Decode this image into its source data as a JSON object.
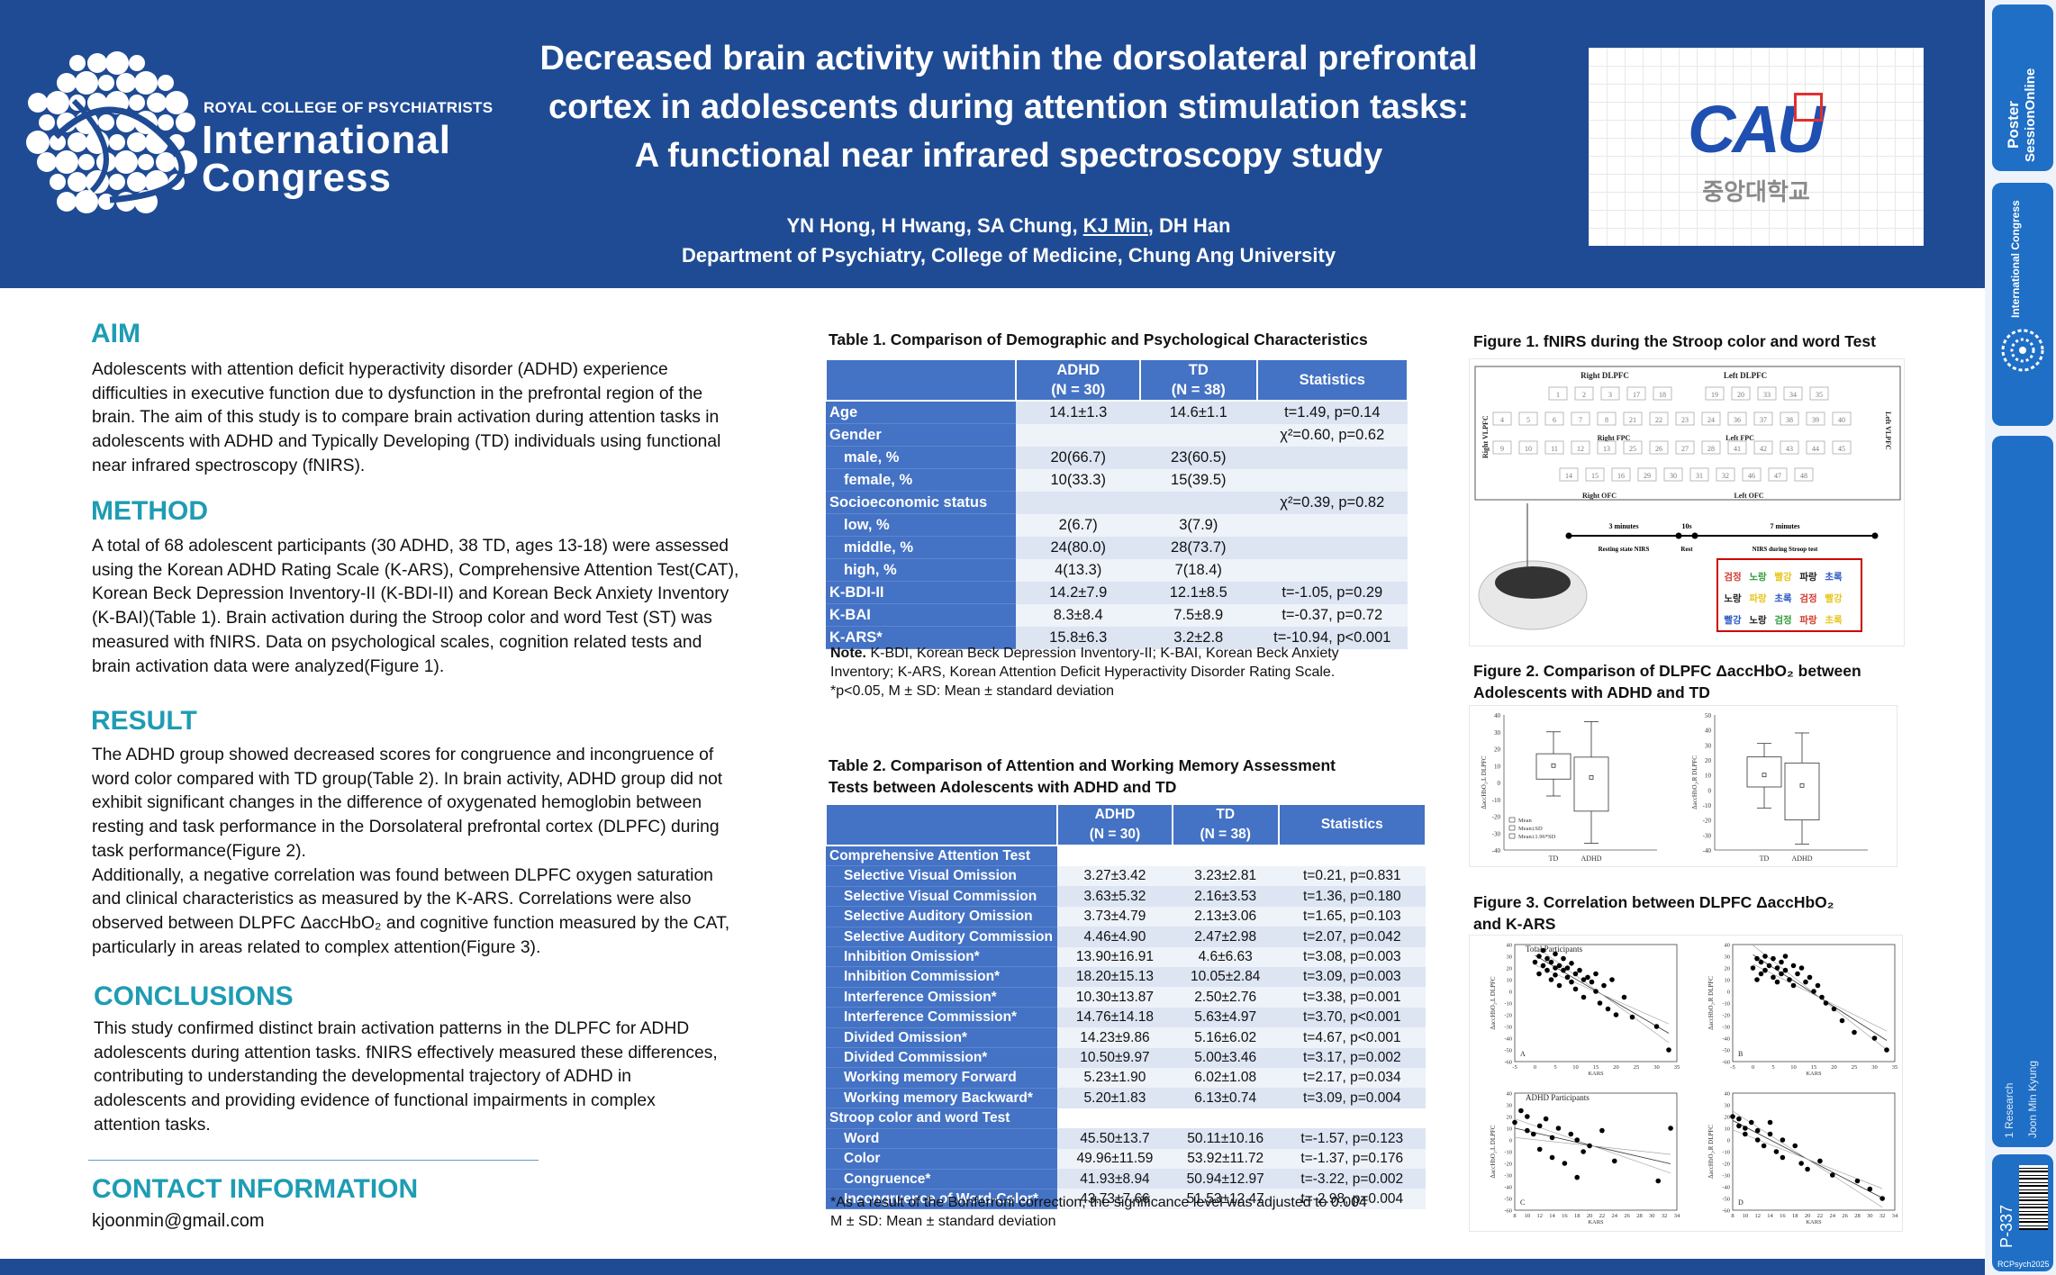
{
  "header": {
    "org_small": "ROYAL COLLEGE OF PSYCHIATRISTS",
    "org_line1": "International",
    "org_line2": "Congress",
    "title_lines": [
      "Decreased brain activity within the dorsolateral prefrontal",
      "cortex in adolescents during attention stimulation tasks:",
      "A functional near infrared spectroscopy study"
    ],
    "authors_before": "YN Hong, H Hwang, SA Chung, ",
    "authors_presenter": "KJ Min",
    "authors_after": ", DH Han",
    "affiliation": "Department of Psychiatry, College of Medicine, Chung Ang University",
    "univ_logo_text": "CAU",
    "univ_logo_korean": "중앙대학교"
  },
  "sidebar": {
    "brand_line1": "Poster",
    "brand_line2": "SessionOnline",
    "brand_sub": "International Congress",
    "category": "1 Research",
    "presenter": "Joon Min Kyung",
    "poster_id": "P-337",
    "event_code": "RCPsych2025"
  },
  "aim": {
    "heading": "AIM",
    "lines": [
      "Adolescents with attention deficit hyperactivity disorder (ADHD) experience",
      "difficulties in executive function due to dysfunction in the prefrontal region of the",
      "brain. The aim of this study is to compare brain activation during attention tasks in",
      "adolescents with ADHD and Typically Developing (TD) individuals using functional",
      "near infrared spectroscopy (fNIRS)."
    ]
  },
  "method": {
    "heading": "METHOD",
    "lines": [
      "A total of 68 adolescent participants (30 ADHD, 38 TD, ages 13-18) were assessed",
      "using the Korean ADHD Rating Scale (K-ARS), Comprehensive Attention Test(CAT),",
      "Korean Beck Depression Inventory-II (K-BDI-II) and Korean Beck Anxiety Inventory",
      "(K-BAI)(Table 1). Brain activation during the Stroop color and word Test (ST) was",
      "measured with fNIRS. Data on psychological scales, cognition related tests and",
      "brain activation data were analyzed(Figure 1)."
    ]
  },
  "result": {
    "heading": "RESULT",
    "lines": [
      "The ADHD group showed decreased scores for congruence and incongruence of",
      "word color compared with TD group(Table 2). In brain activity, ADHD group did not",
      "exhibit significant changes in the difference of oxygenated hemoglobin between",
      "resting and task performance in the Dorsolateral prefrontal cortex (DLPFC) during",
      "task performance(Figure 2).",
      "Additionally, a negative correlation was found between DLPFC oxygen saturation",
      "and clinical characteristics as measured by the K-ARS. Correlations were also",
      "observed between DLPFC ΔaccHbO₂ and cognitive function measured by the CAT,",
      "particularly in areas related to complex attention(Figure 3)."
    ]
  },
  "conclusions": {
    "heading": "CONCLUSIONS",
    "lines": [
      "This study confirmed distinct brain activation patterns in the DLPFC for ADHD",
      "adolescents during attention tasks. fNIRS effectively measured these differences,",
      "contributing to understanding the developmental trajectory of ADHD in",
      "adolescents and providing evidence of functional impairments in complex",
      "attention tasks."
    ]
  },
  "contact": {
    "heading": "CONTACT INFORMATION",
    "email": "kjoonmin@gmail.com"
  },
  "table1": {
    "caption": "Table 1. Comparison of Demographic and Psychological Characteristics",
    "headers": [
      "",
      "ADHD\n(N = 30)",
      "TD\n(N = 38)",
      "Statistics"
    ],
    "rows": [
      [
        "Age",
        "14.1±1.3",
        "14.6±1.1",
        "t=1.49, p=0.14"
      ],
      [
        "Gender",
        "",
        "",
        "χ²=0.60, p=0.62"
      ],
      [
        "male, %",
        "20(66.7)",
        "23(60.5)",
        ""
      ],
      [
        "female, %",
        "10(33.3)",
        "15(39.5)",
        ""
      ],
      [
        "Socioeconomic status",
        "",
        "",
        "χ²=0.39, p=0.82"
      ],
      [
        "low, %",
        "2(6.7)",
        "3(7.9)",
        ""
      ],
      [
        "middle, %",
        "24(80.0)",
        "28(73.7)",
        ""
      ],
      [
        "high, %",
        "4(13.3)",
        "7(18.4)",
        ""
      ],
      [
        "K-BDI-II",
        "14.2±7.9",
        "12.1±8.5",
        "t=-1.05, p=0.29"
      ],
      [
        "K-BAI",
        "8.3±8.4",
        "7.5±8.9",
        "t=-0.37, p=0.72"
      ],
      [
        "K-ARS*",
        "15.8±6.3",
        "3.2±2.8",
        "t=-10.94, p<0.001"
      ]
    ],
    "note_bold": "Note.",
    "note_lines": [
      " K-BDI, Korean Beck Depression Inventory-II; K-BAI, Korean Beck Anxiety",
      "Inventory; K-ARS, Korean Attention Deficit Hyperactivity Disorder Rating Scale.",
      "*p<0.05, M ± SD: Mean ± standard deviation"
    ]
  },
  "table2": {
    "caption_lines": [
      "Table 2. Comparison of Attention and Working Memory Assessment",
      "Tests between Adolescents with ADHD and TD"
    ],
    "headers": [
      "",
      "ADHD\n(N = 30)",
      "TD\n(N = 38)",
      "Statistics"
    ],
    "rows": [
      [
        "Comprehensive Attention Test",
        "",
        "",
        ""
      ],
      [
        "Selective Visual Omission",
        "3.27±3.42",
        "3.23±2.81",
        "t=0.21, p=0.831"
      ],
      [
        "Selective Visual Commission",
        "3.63±5.32",
        "2.16±3.53",
        "t=1.36, p=0.180"
      ],
      [
        "Selective Auditory Omission",
        "3.73±4.79",
        "2.13±3.06",
        "t=1.65, p=0.103"
      ],
      [
        "Selective Auditory Commission",
        "4.46±4.90",
        "2.47±2.98",
        "t=2.07, p=0.042"
      ],
      [
        "Inhibition Omission*",
        "13.90±16.91",
        "4.6±6.63",
        "t=3.08, p=0.003"
      ],
      [
        "Inhibition Commission*",
        "18.20±15.13",
        "10.05±2.84",
        "t=3.09, p=0.003"
      ],
      [
        "Interference Omission*",
        "10.30±13.87",
        "2.50±2.76",
        "t=3.38, p=0.001"
      ],
      [
        "Interference Commission*",
        "14.76±14.18",
        "5.63±4.97",
        "t=3.70, p<0.001"
      ],
      [
        "Divided Omission*",
        "14.23±9.86",
        "5.16±6.02",
        "t=4.67, p<0.001"
      ],
      [
        "Divided Commission*",
        "10.50±9.97",
        "5.00±3.46",
        "t=3.17, p=0.002"
      ],
      [
        "Working memory Forward",
        "5.23±1.90",
        "6.02±1.08",
        "t=2.17, p=0.034"
      ],
      [
        "Working memory Backward*",
        "5.20±1.83",
        "6.13±0.74",
        "t=3.09, p=0.004"
      ],
      [
        "Stroop color and word Test",
        "",
        "",
        ""
      ],
      [
        "Word",
        "45.50±13.7",
        "50.11±10.16",
        "t=-1.57, p=0.123"
      ],
      [
        "Color",
        "49.96±11.59",
        "53.92±11.72",
        "t=-1.37, p=0.176"
      ],
      [
        "Congruence*",
        "41.93±8.94",
        "50.94±12.97",
        "t=-3.22, p=0.002"
      ],
      [
        "Incongruence of Word-Color*",
        "43.73±7.66",
        "51.53±12.47",
        "t=-2.98, p=0.004"
      ]
    ],
    "note_lines": [
      "*As a result of the Bonferroni correction, the significance level was adjusted to 0.004",
      "M ± SD: Mean ± standard deviation"
    ]
  },
  "figure1": {
    "caption": "Figure 1. fNIRS  during the Stroop color and word Test",
    "region_labels": [
      "Right DLPFC",
      "Left DLPFC",
      "Right VLPFC",
      "Left VLPFC",
      "Right FPC",
      "Left FPC",
      "Right OFC",
      "Left OFC"
    ],
    "channels": [
      "1",
      "2",
      "3",
      "17",
      "18",
      "19",
      "20",
      "33",
      "34",
      "35",
      "4",
      "5",
      "6",
      "7",
      "8",
      "21",
      "22",
      "23",
      "24",
      "36",
      "37",
      "38",
      "39",
      "40",
      "9",
      "10",
      "11",
      "12",
      "13",
      "25",
      "26",
      "27",
      "28",
      "41",
      "42",
      "43",
      "44",
      "45",
      "14",
      "15",
      "16",
      "29",
      "30",
      "31",
      "32",
      "46",
      "47",
      "48"
    ],
    "timeline": [
      "3 minutes",
      "10s",
      "7 minutes",
      "Resting state NIRS",
      "Rest",
      "NIRS during Stroop test"
    ],
    "stroop_rows": [
      [
        {
          "t": "검정",
          "c": "#d23b2e"
        },
        {
          "t": "노랑",
          "c": "#2e9c3a"
        },
        {
          "t": "빨강",
          "c": "#e8c51a"
        },
        {
          "t": "파랑",
          "c": "#222222"
        },
        {
          "t": "초록",
          "c": "#2a56c4"
        }
      ],
      [
        {
          "t": "노랑",
          "c": "#222222"
        },
        {
          "t": "파랑",
          "c": "#e8c51a"
        },
        {
          "t": "초록",
          "c": "#2a56c4"
        },
        {
          "t": "검정",
          "c": "#d23b2e"
        },
        {
          "t": "빨강",
          "c": "#e8c51a"
        }
      ],
      [
        {
          "t": "빨강",
          "c": "#2a56c4"
        },
        {
          "t": "노랑",
          "c": "#222222"
        },
        {
          "t": "검정",
          "c": "#2e9c3a"
        },
        {
          "t": "파랑",
          "c": "#d23b2e"
        },
        {
          "t": "초록",
          "c": "#e8c51a"
        }
      ]
    ]
  },
  "figure2": {
    "caption_lines": [
      "Figure 2. Comparison of DLPFC ΔaccHbO₂  between",
      "Adolescents with ADHD and TD"
    ],
    "legend": [
      "Mean",
      "Mean±SD",
      "Mean±1.96*SD"
    ]
  },
  "figure3": {
    "caption_lines": [
      "Figure 3. Correlation between DLPFC ΔaccHbO₂",
      "and K-ARS"
    ],
    "panel_titles": [
      "Total Participants",
      "ADHD Participants"
    ],
    "xlabel": "KARS"
  },
  "chart_data": [
    {
      "type": "box",
      "panel": "Figure 2 left",
      "ylabel": "ΔaccHbO₂,L DLPFC",
      "categories": [
        "TD",
        "ADHD"
      ],
      "ylim": [
        -40,
        40
      ],
      "yticks": [
        40,
        30,
        20,
        10,
        0,
        -10,
        -20,
        -30,
        -40
      ],
      "boxes": [
        {
          "name": "TD",
          "mean": 10,
          "q1": 2,
          "q3": 17,
          "whisker_low": -8,
          "whisker_high": 30
        },
        {
          "name": "ADHD",
          "mean": 3,
          "q1": -17,
          "q3": 15,
          "whisker_low": -36,
          "whisker_high": 36
        }
      ]
    },
    {
      "type": "box",
      "panel": "Figure 2 right",
      "ylabel": "ΔaccHbO₂,R DLPFC",
      "categories": [
        "TD",
        "ADHD"
      ],
      "ylim": [
        -40,
        50
      ],
      "yticks": [
        50,
        40,
        30,
        20,
        10,
        0,
        -10,
        -20,
        -30,
        -40
      ],
      "boxes": [
        {
          "name": "TD",
          "mean": 10,
          "q1": 2,
          "q3": 22,
          "whisker_low": -12,
          "whisker_high": 31
        },
        {
          "name": "ADHD",
          "mean": 3,
          "q1": -20,
          "q3": 18,
          "whisker_low": -36,
          "whisker_high": 38
        }
      ]
    },
    {
      "type": "scatter",
      "panel": "A",
      "title": "Total Participants",
      "xlabel": "KARS",
      "ylabel": "ΔaccHbO₂,L DLPFC",
      "xlim": [
        -5,
        35
      ],
      "ylim": [
        -60,
        40
      ],
      "xticks": [
        -5,
        0,
        5,
        10,
        15,
        20,
        25,
        30,
        35
      ],
      "yticks": [
        40,
        30,
        20,
        10,
        0,
        -10,
        -20,
        -30,
        -40,
        -50,
        -60
      ],
      "x": [
        0,
        1,
        1,
        2,
        2,
        3,
        3,
        4,
        4,
        5,
        5,
        5,
        6,
        6,
        7,
        7,
        8,
        8,
        9,
        9,
        10,
        10,
        11,
        12,
        12,
        13,
        14,
        15,
        15,
        16,
        17,
        18,
        19,
        20,
        22,
        24,
        30,
        33
      ],
      "y": [
        25,
        30,
        15,
        22,
        35,
        18,
        28,
        10,
        25,
        20,
        32,
        14,
        22,
        5,
        18,
        28,
        12,
        20,
        8,
        24,
        15,
        2,
        18,
        10,
        -5,
        12,
        8,
        0,
        15,
        -10,
        5,
        -15,
        10,
        -20,
        -5,
        -22,
        -30,
        -50
      ]
    },
    {
      "type": "scatter",
      "panel": "B",
      "title": "",
      "xlabel": "KARS",
      "ylabel": "ΔaccHbO₂,R DLPFC",
      "xlim": [
        -5,
        35
      ],
      "ylim": [
        -60,
        40
      ],
      "xticks": [
        -5,
        0,
        5,
        10,
        15,
        20,
        25,
        30,
        35
      ],
      "yticks": [
        40,
        30,
        20,
        10,
        0,
        -10,
        -20,
        -30,
        -40,
        -50,
        -60
      ],
      "x": [
        0,
        1,
        1,
        2,
        2,
        3,
        3,
        4,
        5,
        5,
        6,
        6,
        7,
        7,
        8,
        8,
        9,
        10,
        10,
        11,
        12,
        13,
        14,
        15,
        16,
        17,
        18,
        20,
        22,
        25,
        30,
        33
      ],
      "y": [
        20,
        28,
        10,
        25,
        15,
        30,
        18,
        22,
        12,
        28,
        20,
        8,
        25,
        15,
        18,
        30,
        10,
        22,
        5,
        15,
        20,
        8,
        12,
        0,
        5,
        -5,
        -10,
        -15,
        -25,
        -35,
        -40,
        -50
      ]
    },
    {
      "type": "scatter",
      "panel": "C",
      "title": "ADHD Participants",
      "xlabel": "KARS",
      "ylabel": "ΔaccHbO₂,L DLPFC",
      "xlim": [
        8,
        34
      ],
      "ylim": [
        -60,
        40
      ],
      "xticks": [
        8,
        10,
        12,
        14,
        16,
        18,
        20,
        22,
        24,
        26,
        28,
        30,
        32,
        34
      ],
      "yticks": [
        40,
        30,
        20,
        10,
        0,
        -10,
        -20,
        -30,
        -40,
        -50,
        -60
      ],
      "x": [
        8,
        9,
        10,
        10,
        11,
        12,
        12,
        13,
        14,
        14,
        15,
        16,
        17,
        18,
        18,
        19,
        20,
        22,
        24,
        31,
        33
      ],
      "y": [
        15,
        25,
        20,
        8,
        5,
        12,
        -8,
        18,
        2,
        -15,
        10,
        -20,
        5,
        0,
        -32,
        -10,
        -5,
        8,
        -18,
        -35,
        10
      ]
    },
    {
      "type": "scatter",
      "panel": "D",
      "title": "",
      "xlabel": "KARS",
      "ylabel": "ΔaccHbO₂,R DLPFC",
      "xlim": [
        8,
        34
      ],
      "ylim": [
        -60,
        40
      ],
      "xticks": [
        8,
        10,
        12,
        14,
        16,
        18,
        20,
        22,
        24,
        26,
        28,
        30,
        32,
        34
      ],
      "yticks": [
        40,
        30,
        20,
        10,
        0,
        -10,
        -20,
        -30,
        -40,
        -50,
        -60
      ],
      "x": [
        8,
        9,
        9,
        10,
        10,
        11,
        12,
        12,
        13,
        14,
        14,
        15,
        16,
        16,
        18,
        19,
        20,
        22,
        24,
        28,
        30,
        32
      ],
      "y": [
        20,
        12,
        18,
        5,
        10,
        15,
        0,
        8,
        -5,
        5,
        15,
        -10,
        0,
        -15,
        -5,
        -20,
        -25,
        -18,
        -30,
        -35,
        -42,
        -50
      ]
    }
  ]
}
